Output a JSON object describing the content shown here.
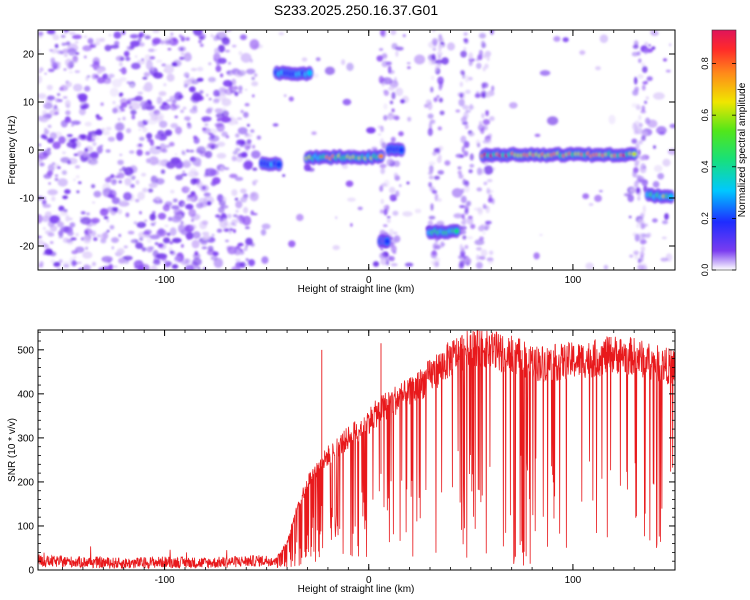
{
  "title": "S233.2025.250.16.37.G01",
  "colors": {
    "frame": "#000000",
    "snr_line": "#e8191c",
    "spectrum_low": "#7a3df0",
    "spectrum_mid": "#00e6ff",
    "spectrum_high": "#e0143c"
  },
  "chart_data": [
    {
      "type": "heatmap",
      "name": "spectrogram",
      "xlabel": "Height of straight line (km)",
      "ylabel": "Frequency (Hz)",
      "xlim": [
        -162,
        150
      ],
      "ylim": [
        -25,
        25
      ],
      "xticks": [
        -100,
        0,
        100
      ],
      "yticks": [
        -20,
        -10,
        0,
        10,
        20
      ],
      "colorbar": {
        "label": "Normalized spectral amplitude",
        "range": [
          0.0,
          0.93
        ],
        "ticks": [
          "0.0",
          "0.2",
          "0.4",
          "0.6",
          "0.8"
        ]
      },
      "tracks": [
        {
          "label": "main tone",
          "segments": [
            {
              "x0": -52,
              "x1": -44,
              "freq": -3,
              "amp": 0.3
            },
            {
              "x0": -30,
              "x1": 6,
              "freq": -1.5,
              "amp": 0.7
            },
            {
              "x0": 10,
              "x1": 16,
              "freq": 0,
              "amp": 0.25
            },
            {
              "x0": 56,
              "x1": 130,
              "freq": -1,
              "amp": 0.85
            },
            {
              "x0": 137,
              "x1": 148,
              "freq": -9.5,
              "amp": 0.6
            }
          ]
        },
        {
          "label": "upper blob",
          "segments": [
            {
              "x0": -45,
              "x1": -29,
              "freq": 16,
              "amp": 0.35
            }
          ]
        },
        {
          "label": "lower blob",
          "segments": [
            {
              "x0": 30,
              "x1": 43,
              "freq": -17,
              "amp": 0.55
            },
            {
              "x0": 6,
              "x1": 9,
              "freq": -19,
              "amp": 0.2
            }
          ]
        }
      ]
    },
    {
      "type": "line",
      "name": "snr",
      "xlabel": "Height of straight line (km)",
      "ylabel": "SNR (10 * v/v)",
      "xlim": [
        -162,
        150
      ],
      "ylim": [
        0,
        545
      ],
      "xticks": [
        -100,
        0,
        100
      ],
      "yticks": [
        0,
        100,
        200,
        300,
        400,
        500
      ],
      "series": [
        {
          "name": "SNR",
          "points": [
            [
              -162,
              20
            ],
            [
              -140,
              18
            ],
            [
              -120,
              15
            ],
            [
              -100,
              18
            ],
            [
              -80,
              16
            ],
            [
              -60,
              20
            ],
            [
              -46,
              22
            ],
            [
              -40,
              60
            ],
            [
              -35,
              140
            ],
            [
              -30,
              200
            ],
            [
              -20,
              260
            ],
            [
              -10,
              300
            ],
            [
              0,
              340
            ],
            [
              10,
              380
            ],
            [
              20,
              400
            ],
            [
              30,
              440
            ],
            [
              40,
              480
            ],
            [
              50,
              510
            ],
            [
              60,
              500
            ],
            [
              70,
              490
            ],
            [
              80,
              470
            ],
            [
              90,
              470
            ],
            [
              100,
              475
            ],
            [
              110,
              480
            ],
            [
              120,
              490
            ],
            [
              130,
              485
            ],
            [
              140,
              470
            ],
            [
              150,
              460
            ]
          ]
        }
      ],
      "annotations": [
        {
          "x": -23,
          "y": 500,
          "text": ""
        },
        {
          "x": 6,
          "y": 515,
          "text": ""
        }
      ]
    }
  ]
}
